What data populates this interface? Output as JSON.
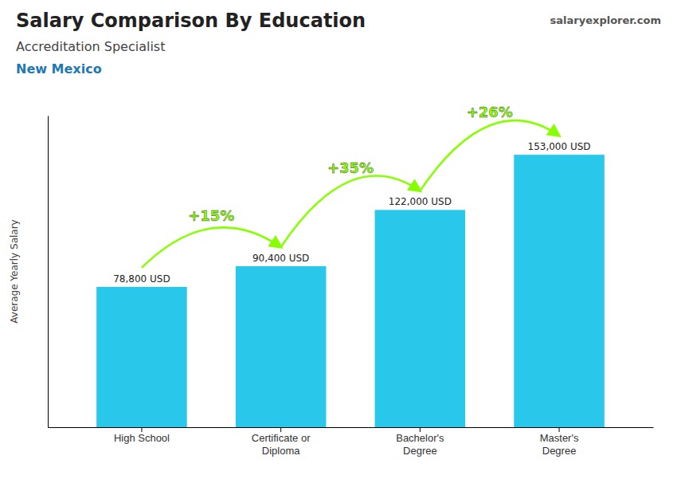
{
  "chart_data": {
    "type": "bar",
    "title": "Salary Comparison By Education",
    "subtitle": "Accreditation Specialist",
    "ylabel": "Average Yearly Salary",
    "categories": [
      "High School",
      "Certificate or\nDiploma",
      "Bachelor's\nDegree",
      "Master's\nDegree"
    ],
    "values": [
      78800,
      90400,
      122000,
      153000
    ],
    "value_labels": [
      "78,800 USD",
      "90,400 USD",
      "122,000 USD",
      "153,000 USD"
    ],
    "data_labels": true,
    "color": "#29c8eb",
    "ylim": [
      0,
      175000
    ],
    "tick_labels": "x",
    "grid": false,
    "annotations": [
      {
        "text": "New Mexico"
      },
      {
        "text": "salaryexplorer.com"
      },
      {
        "text": "+15%",
        "between": [
          0,
          1
        ],
        "color": "#88ff00"
      },
      {
        "text": "+35%",
        "between": [
          1,
          2
        ],
        "color": "#88ff00"
      },
      {
        "text": "+26%",
        "between": [
          2,
          3
        ],
        "color": "#88ff00"
      }
    ]
  }
}
